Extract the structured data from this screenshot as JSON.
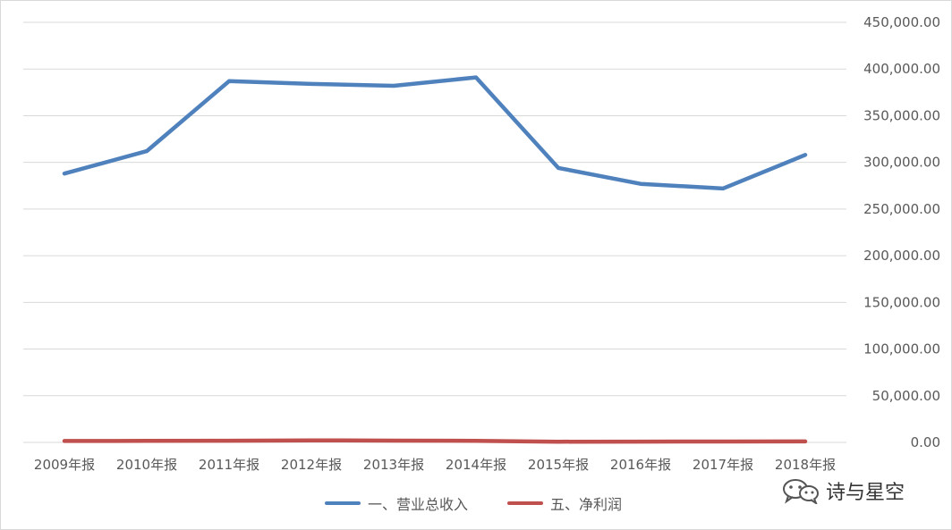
{
  "chart_data": {
    "type": "line",
    "categories": [
      "2009年报",
      "2010年报",
      "2011年报",
      "2012年报",
      "2013年报",
      "2014年报",
      "2015年报",
      "2016年报",
      "2017年报",
      "2018年报"
    ],
    "series": [
      {
        "name": "一、营业总收入",
        "color": "#4f81bd",
        "values": [
          288000,
          312000,
          387000,
          384000,
          382000,
          391000,
          294000,
          277000,
          272000,
          308000
        ]
      },
      {
        "name": "五、净利润",
        "color": "#c0504d",
        "values": [
          1500,
          1600,
          1800,
          2200,
          1900,
          1700,
          800,
          900,
          1000,
          1100
        ]
      }
    ],
    "ylim": [
      0,
      450000
    ],
    "yticks": [
      0,
      50000,
      100000,
      150000,
      200000,
      250000,
      300000,
      350000,
      400000,
      450000
    ],
    "ytick_labels": [
      "0.00",
      "50,000.00",
      "100,000.00",
      "150,000.00",
      "200,000.00",
      "250,000.00",
      "300,000.00",
      "350,000.00",
      "400,000.00",
      "450,000.00"
    ],
    "y_axis_side": "right",
    "grid": true,
    "legend_position": "bottom",
    "title": "",
    "xlabel": "",
    "ylabel": ""
  },
  "watermark": {
    "text": "诗与星空",
    "icon": "wechat-icon"
  }
}
